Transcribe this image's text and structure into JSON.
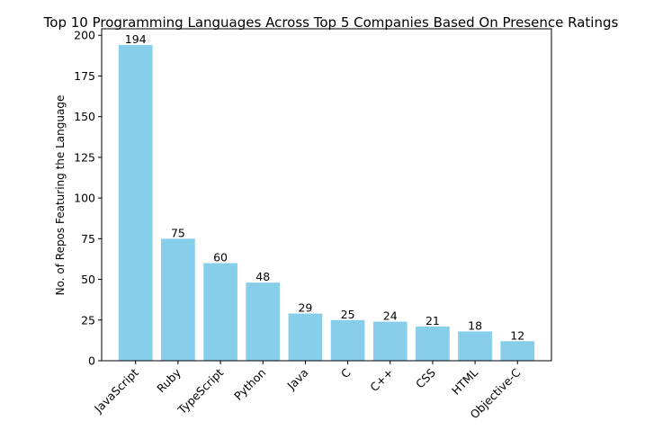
{
  "chart_data": {
    "type": "bar",
    "title": "Top 10 Programming Languages Across Top 5 Companies Based On Presence Ratings",
    "xlabel": "",
    "ylabel": "No. of Repos Featuring the Language",
    "categories": [
      "JavaScript",
      "Ruby",
      "TypeScript",
      "Python",
      "Java",
      "C",
      "C++",
      "CSS",
      "HTML",
      "Objective-C"
    ],
    "values": [
      194,
      75,
      60,
      48,
      29,
      25,
      24,
      21,
      18,
      12
    ],
    "ylim": [
      0,
      204
    ],
    "yticks": [
      0,
      25,
      50,
      75,
      100,
      125,
      150,
      175,
      200
    ],
    "bar_color": "#87ceeb",
    "grid": false,
    "legend": "none"
  }
}
